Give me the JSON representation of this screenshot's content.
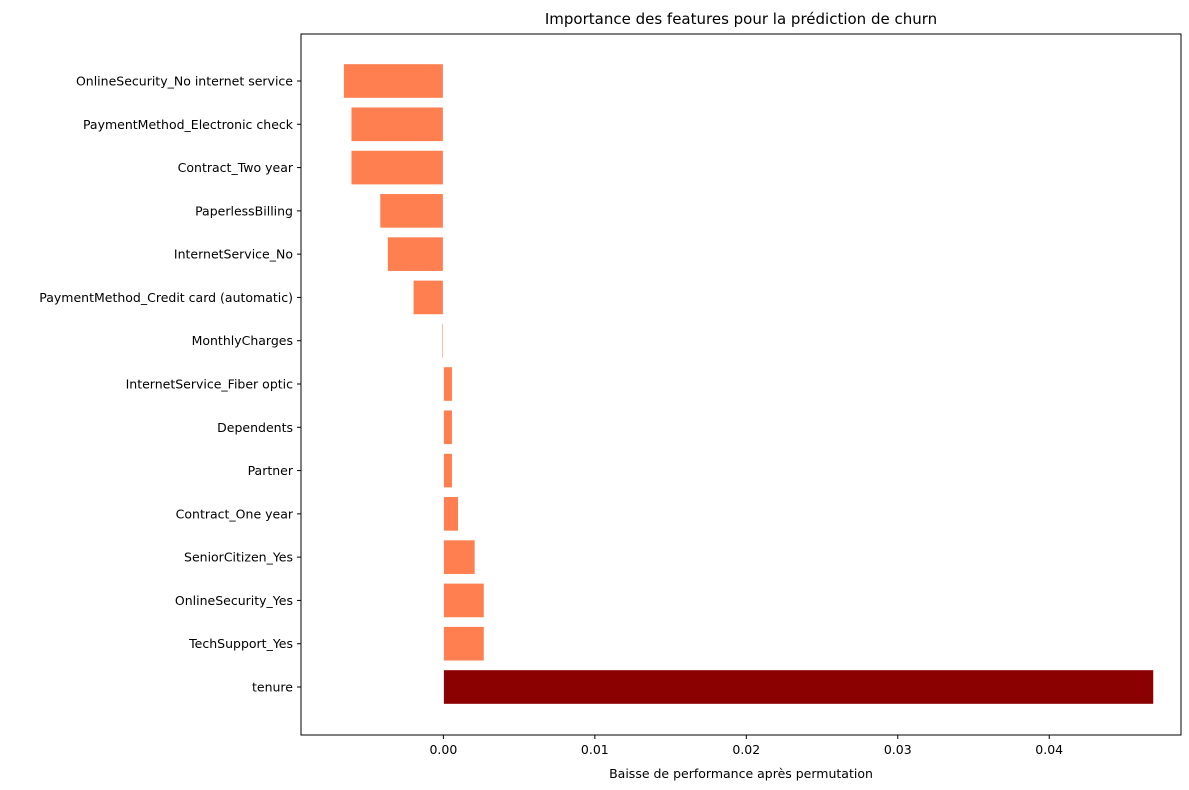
{
  "chart_data": {
    "type": "bar",
    "orientation": "horizontal",
    "title": "Importance des features pour la prédiction de churn",
    "xlabel": "Baisse de performance après permutation",
    "ylabel": "",
    "xlim": [
      -0.0094,
      0.0487
    ],
    "xticks": [
      0.0,
      0.01,
      0.02,
      0.03,
      0.04
    ],
    "xtick_labels": [
      "0.00",
      "0.01",
      "0.02",
      "0.03",
      "0.04"
    ],
    "grid": false,
    "categories": [
      "OnlineSecurity_No internet service",
      "PaymentMethod_Electronic check",
      "Contract_Two year",
      "PaperlessBilling",
      "InternetService_No",
      "PaymentMethod_Credit card (automatic)",
      "MonthlyCharges",
      "InternetService_Fiber optic",
      "Dependents",
      "Partner",
      "Contract_One year",
      "SeniorCitizen_Yes",
      "OnlineSecurity_Yes",
      "TechSupport_Yes",
      "tenure"
    ],
    "values": [
      -0.0066,
      -0.0061,
      -0.0061,
      -0.0042,
      -0.0037,
      -0.002,
      -0.0001,
      0.0006,
      0.0006,
      0.0006,
      0.001,
      0.0021,
      0.0027,
      0.0027,
      0.0469
    ],
    "colors": {
      "default": "#ff7f50",
      "highlight": "#8b0000"
    },
    "highlight_category": "tenure"
  }
}
